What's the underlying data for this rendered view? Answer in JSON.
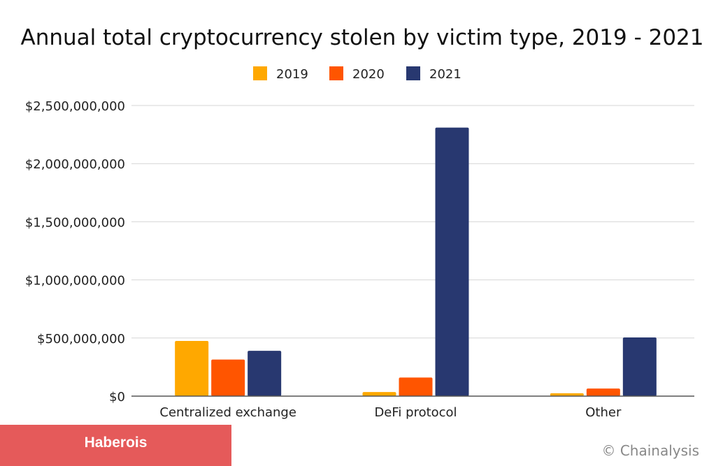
{
  "chart_data": {
    "type": "bar",
    "title": "Annual total cryptocurrency stolen by victim type, 2019 - 2021",
    "categories": [
      "Centralized exchange",
      "DeFi protocol",
      "Other"
    ],
    "series": [
      {
        "name": "2019",
        "color": "#FFA800",
        "values": [
          475000000,
          35000000,
          25000000
        ]
      },
      {
        "name": "2020",
        "color": "#FF5500",
        "values": [
          315000000,
          160000000,
          65000000
        ]
      },
      {
        "name": "2021",
        "color": "#283870",
        "values": [
          390000000,
          2310000000,
          505000000
        ]
      }
    ],
    "yticks": [
      {
        "value": 0,
        "label": "$0"
      },
      {
        "value": 500000000,
        "label": "$500,000,000"
      },
      {
        "value": 1000000000,
        "label": "$1,000,000,000"
      },
      {
        "value": 1500000000,
        "label": "$1,500,000,000"
      },
      {
        "value": 2000000000,
        "label": "$2,000,000,000"
      },
      {
        "value": 2500000000,
        "label": "$2,500,000,000"
      }
    ],
    "ylim": [
      0,
      2500000000
    ],
    "grid": true,
    "legend_position": "top-center"
  },
  "badge": {
    "label": "Haberois",
    "color": "#E55A5A"
  },
  "credit": "© Chainalysis"
}
